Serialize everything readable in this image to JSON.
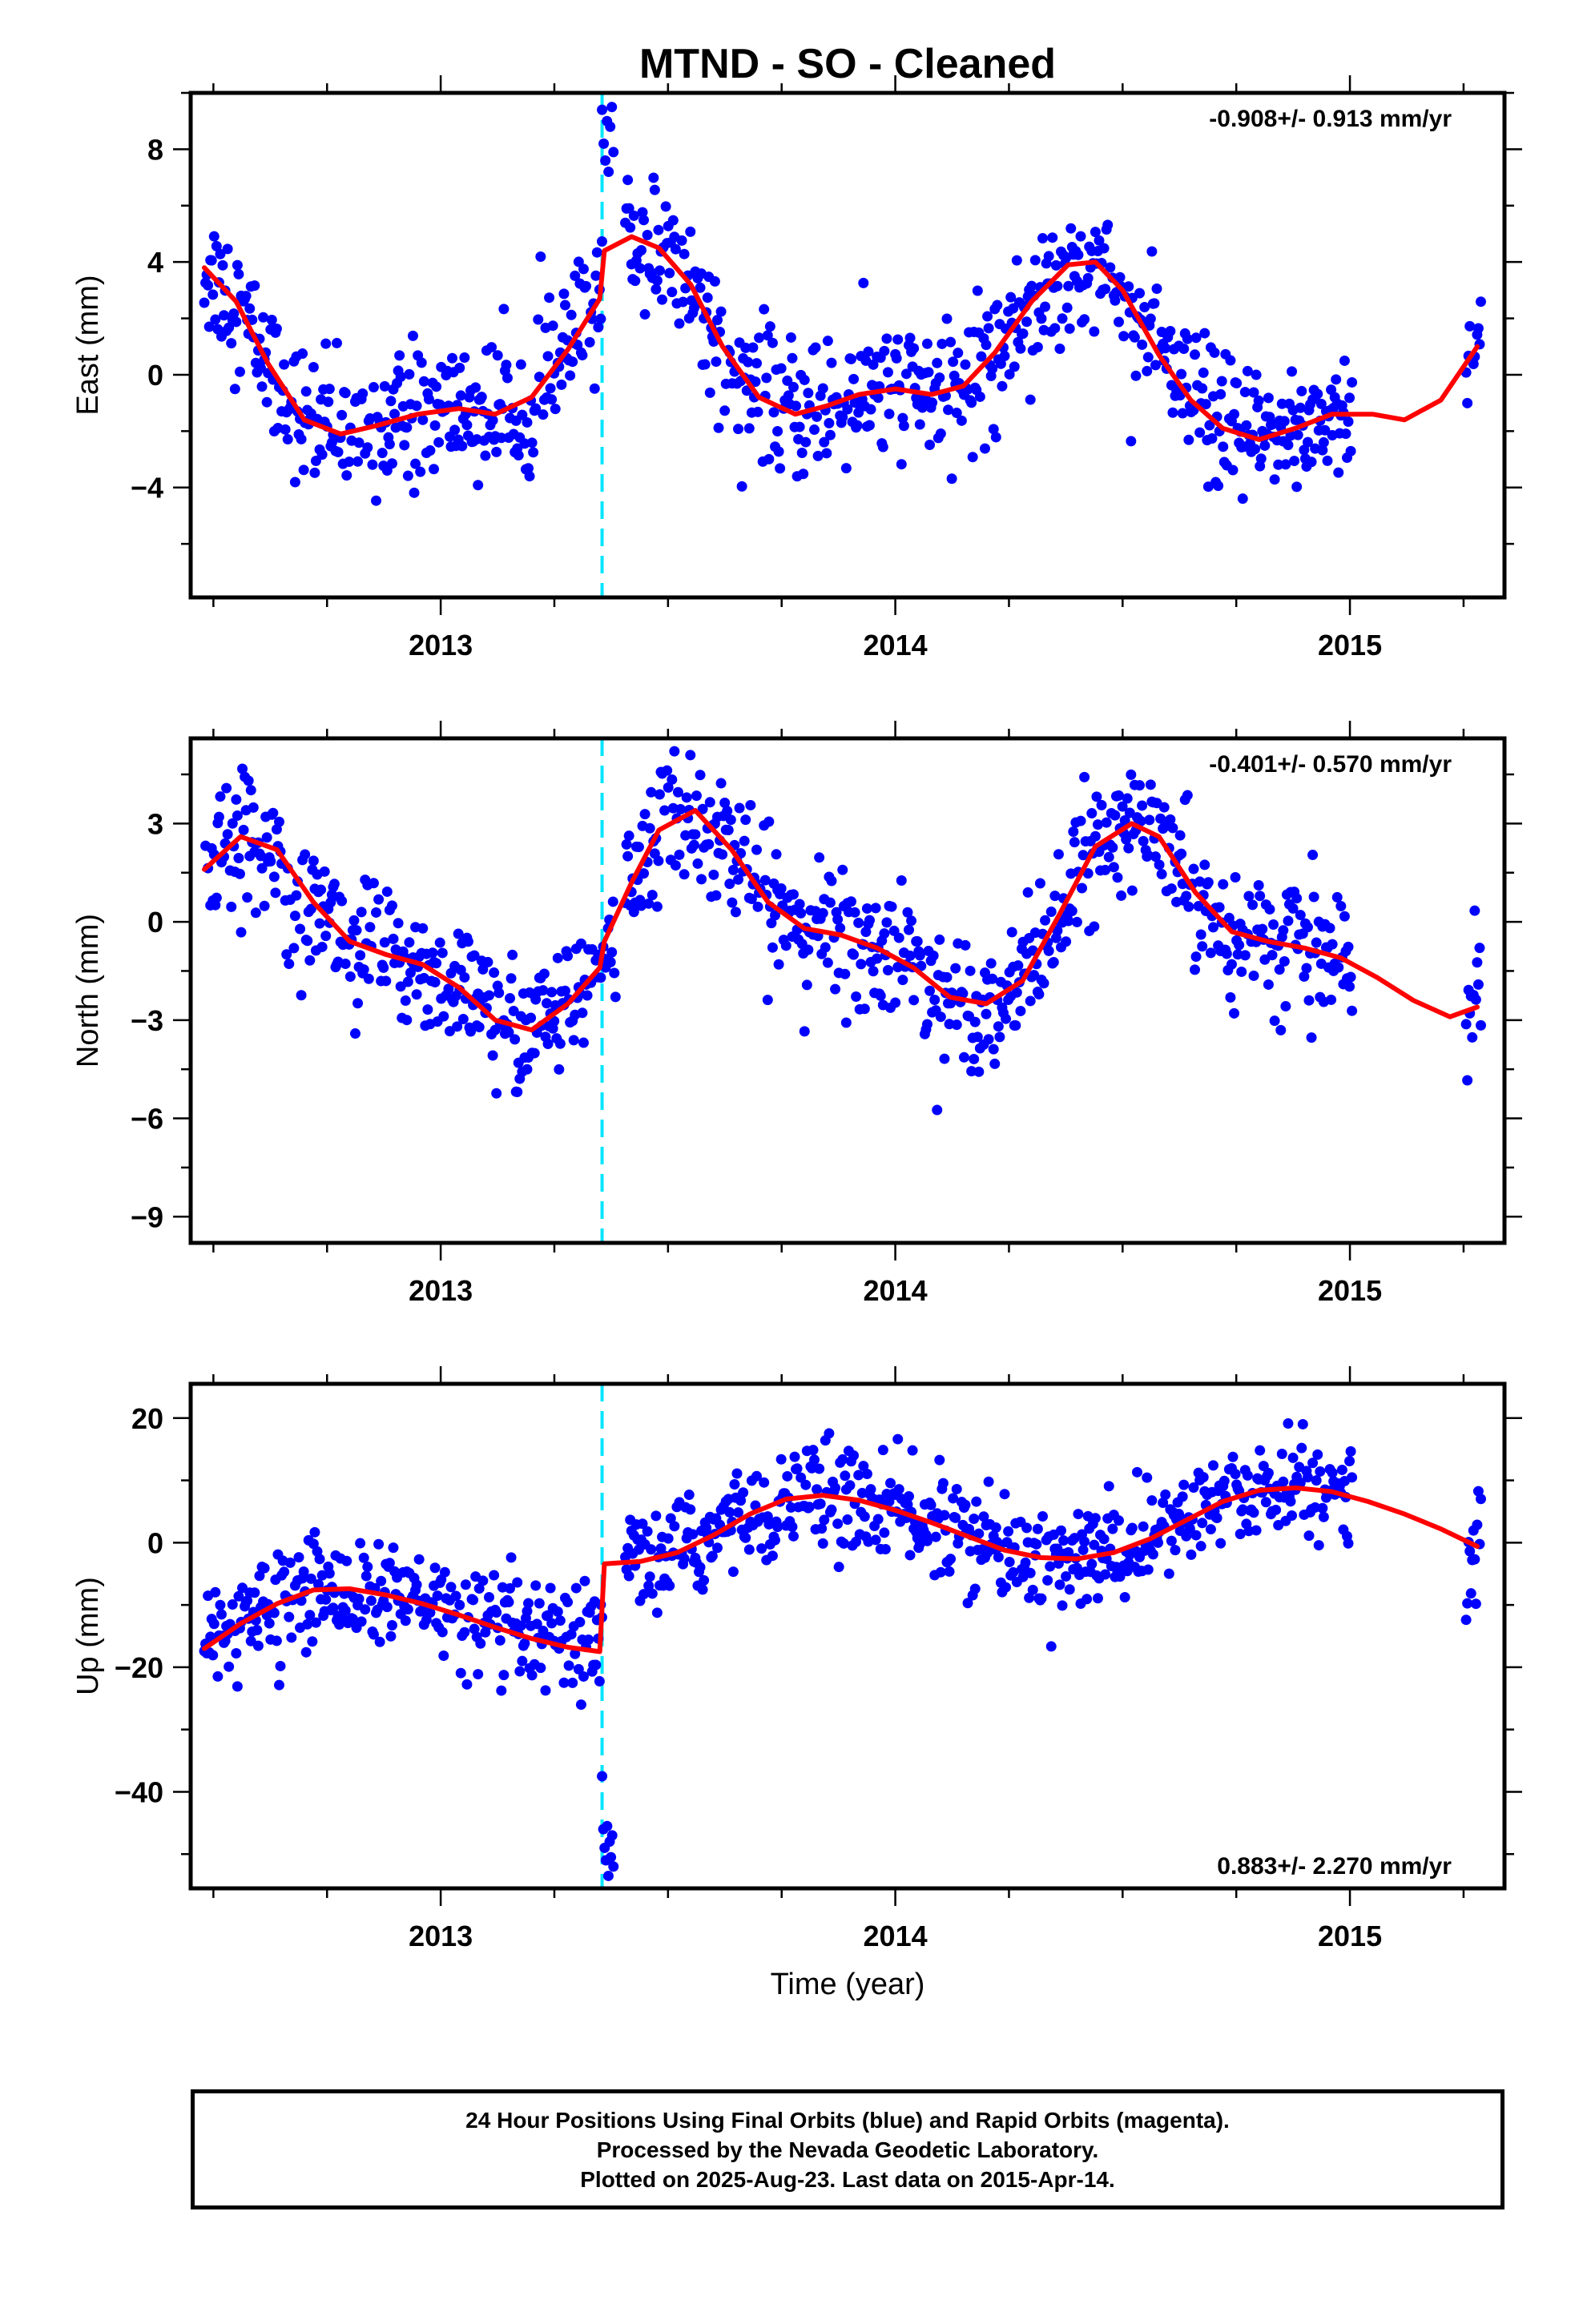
{
  "title": "MTND  - SO - Cleaned",
  "x_axis_label": "Time (year)",
  "footer": {
    "line1": "24 Hour Positions Using Final Orbits (blue) and Rapid Orbits (magenta).",
    "line2": "Processed by the Nevada Geodetic Laboratory.",
    "line3": "Plotted on 2025-Aug-23. Last data on 2015-Apr-14."
  },
  "colors": {
    "points": "#0000ff",
    "fit": "#ff0000",
    "event_line": "#00e5ff",
    "axes": "#000000"
  },
  "chart_data": [
    {
      "type": "scatter",
      "panel": "east",
      "ylabel": "East (mm)",
      "rate_text": "-0.908+/- 0.913 mm/yr",
      "rate_position": "top-right",
      "xlim": [
        2012.45,
        2015.34
      ],
      "ylim": [
        -7.9,
        10.0
      ],
      "x_ticks": [
        2013,
        2014,
        2015
      ],
      "x_tick_labels": [
        "2013",
        "2014",
        "2015"
      ],
      "y_ticks": [
        8,
        4,
        0,
        -4
      ],
      "y_tick_labels": [
        "8",
        "4",
        "0",
        "-4"
      ],
      "event_line_x": 2013.355,
      "step": {
        "x": 2013.355,
        "before": 2.7,
        "after": 4.4
      },
      "fit": {
        "x": [
          2012.48,
          2012.55,
          2012.62,
          2012.7,
          2012.78,
          2012.86,
          2012.95,
          2013.04,
          2013.12,
          2013.2,
          2013.28,
          2013.35,
          2013.36,
          2013.42,
          2013.48,
          2013.55,
          2013.62,
          2013.7,
          2013.78,
          2013.85,
          2013.92,
          2014.0,
          2014.08,
          2014.15,
          2014.22,
          2014.3,
          2014.38,
          2014.44,
          2014.5,
          2014.58,
          2014.65,
          2014.72,
          2014.8,
          2014.88,
          2014.96,
          2015.05,
          2015.12,
          2015.2,
          2015.28
        ],
        "y": [
          3.8,
          2.6,
          0.4,
          -1.6,
          -2.1,
          -1.8,
          -1.4,
          -1.2,
          -1.4,
          -0.8,
          0.9,
          2.7,
          4.4,
          4.9,
          4.5,
          3.2,
          1.0,
          -0.8,
          -1.4,
          -1.1,
          -0.7,
          -0.5,
          -0.7,
          -0.4,
          0.8,
          2.6,
          3.9,
          4.0,
          3.0,
          0.7,
          -0.9,
          -1.9,
          -2.3,
          -1.9,
          -1.4,
          -1.4,
          -1.6,
          -0.9,
          1.0
        ]
      },
      "point_noise_mm": 1.2,
      "post_event_offset": {
        "from": 2013.355,
        "to": 2013.38,
        "values": [
          9.4,
          8.2,
          7.6,
          9.0,
          7.2,
          8.8,
          9.5,
          7.9
        ]
      }
    },
    {
      "type": "scatter",
      "panel": "north",
      "ylabel": "North (mm)",
      "rate_text": "-0.401+/- 0.570 mm/yr",
      "rate_position": "top-right",
      "xlim": [
        2012.45,
        2015.34
      ],
      "ylim": [
        -9.8,
        5.6
      ],
      "x_ticks": [
        2013,
        2014,
        2015
      ],
      "x_tick_labels": [
        "2013",
        "2014",
        "2015"
      ],
      "y_ticks": [
        3,
        0,
        -3,
        -6,
        -9
      ],
      "y_tick_labels": [
        "3",
        "0",
        "-3",
        "-6",
        "-9"
      ],
      "event_line_x": 2013.355,
      "step": {
        "x": 2013.355,
        "before": -1.4,
        "after": -0.6
      },
      "fit": {
        "x": [
          2012.48,
          2012.56,
          2012.64,
          2012.72,
          2012.8,
          2012.88,
          2012.96,
          2013.04,
          2013.12,
          2013.2,
          2013.28,
          2013.35,
          2013.36,
          2013.42,
          2013.48,
          2013.56,
          2013.64,
          2013.72,
          2013.8,
          2013.88,
          2013.96,
          2014.04,
          2014.12,
          2014.2,
          2014.28,
          2014.36,
          2014.44,
          2014.52,
          2014.58,
          2014.66,
          2014.74,
          2014.82,
          2014.9,
          2014.98,
          2015.06,
          2015.14,
          2015.22,
          2015.28
        ],
        "y": [
          1.6,
          2.6,
          2.2,
          0.6,
          -0.6,
          -1.0,
          -1.3,
          -2.0,
          -3.0,
          -3.3,
          -2.5,
          -1.4,
          -0.6,
          1.2,
          2.8,
          3.4,
          2.2,
          0.6,
          -0.2,
          -0.4,
          -0.8,
          -1.4,
          -2.3,
          -2.5,
          -1.8,
          0.2,
          2.3,
          3.0,
          2.6,
          0.9,
          -0.3,
          -0.6,
          -0.8,
          -1.1,
          -1.7,
          -2.4,
          -2.9,
          -2.6
        ]
      },
      "point_noise_mm": 1.0
    },
    {
      "type": "scatter",
      "panel": "up",
      "ylabel": "Up (mm)",
      "rate_text": "0.883+/- 2.270 mm/yr",
      "rate_position": "bottom-right",
      "xlim": [
        2012.45,
        2015.34
      ],
      "ylim": [
        -55.5,
        25.5
      ],
      "x_ticks": [
        2013,
        2014,
        2015
      ],
      "x_tick_labels": [
        "2013",
        "2014",
        "2015"
      ],
      "y_ticks": [
        20,
        0,
        -20,
        -40
      ],
      "y_tick_labels": [
        "20",
        "0",
        "-20",
        "-40"
      ],
      "event_line_x": 2013.355,
      "step": {
        "x": 2013.355,
        "before": -17.5,
        "after": -3.4
      },
      "fit": {
        "x": [
          2012.48,
          2012.56,
          2012.64,
          2012.72,
          2012.8,
          2012.88,
          2012.96,
          2013.04,
          2013.12,
          2013.2,
          2013.28,
          2013.35,
          2013.36,
          2013.44,
          2013.52,
          2013.6,
          2013.68,
          2013.76,
          2013.84,
          2013.92,
          2014.0,
          2014.08,
          2014.16,
          2014.24,
          2014.32,
          2014.4,
          2014.48,
          2014.56,
          2014.64,
          2014.72,
          2014.8,
          2014.88,
          2014.96,
          2015.04,
          2015.12,
          2015.2,
          2015.28
        ],
        "y": [
          -17.0,
          -13.0,
          -9.8,
          -7.6,
          -7.4,
          -8.4,
          -9.8,
          -11.6,
          -13.6,
          -15.4,
          -16.8,
          -17.5,
          -3.4,
          -3.0,
          -1.6,
          1.2,
          4.6,
          7.0,
          7.6,
          6.8,
          5.2,
          3.2,
          1.0,
          -1.2,
          -2.4,
          -2.6,
          -1.6,
          0.6,
          3.6,
          6.6,
          8.4,
          8.8,
          8.2,
          6.6,
          4.6,
          2.2,
          -0.6
        ]
      },
      "point_noise_mm": 4.2,
      "post_event_offset": {
        "from": 2013.355,
        "to": 2013.38,
        "values": [
          -37.5,
          -46.0,
          -49.0,
          -51.0,
          -45.5,
          -53.5,
          -48.0,
          -50.5,
          -47.0,
          -52.0
        ]
      }
    }
  ]
}
